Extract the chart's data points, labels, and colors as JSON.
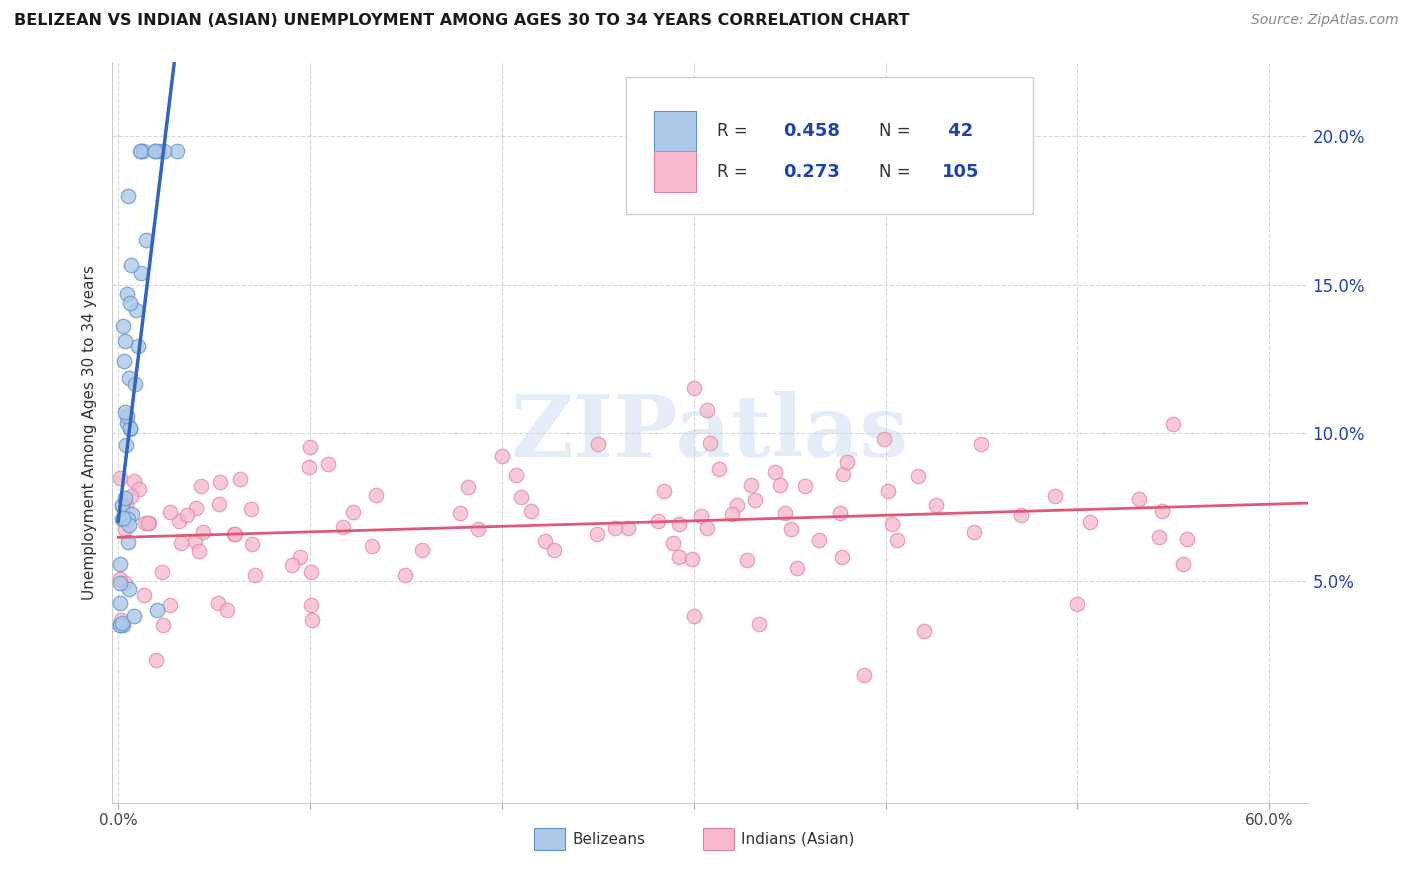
{
  "title": "BELIZEAN VS INDIAN (ASIAN) UNEMPLOYMENT AMONG AGES 30 TO 34 YEARS CORRELATION CHART",
  "source": "Source: ZipAtlas.com",
  "ylabel": "Unemployment Among Ages 30 to 34 years",
  "belizean_R": 0.458,
  "belizean_N": 42,
  "indian_R": 0.273,
  "indian_N": 105,
  "belizean_color": "#adc8e8",
  "belizean_edge_color": "#6090c8",
  "belizean_line_color": "#3366bb",
  "indian_color": "#f5b8cc",
  "indian_edge_color": "#e080a0",
  "indian_line_color": "#e05878",
  "watermark_color": "#c5d8ee",
  "legend_color": "#2244aa",
  "right_tick_color": "#2244aa",
  "grid_color": "#cccccc",
  "xlim": [
    -0.003,
    0.62
  ],
  "ylim": [
    -0.025,
    0.225
  ],
  "yticks": [
    0.05,
    0.1,
    0.15,
    0.2
  ],
  "ytick_labels": [
    "5.0%",
    "10.0%",
    "15.0%",
    "20.0%"
  ]
}
